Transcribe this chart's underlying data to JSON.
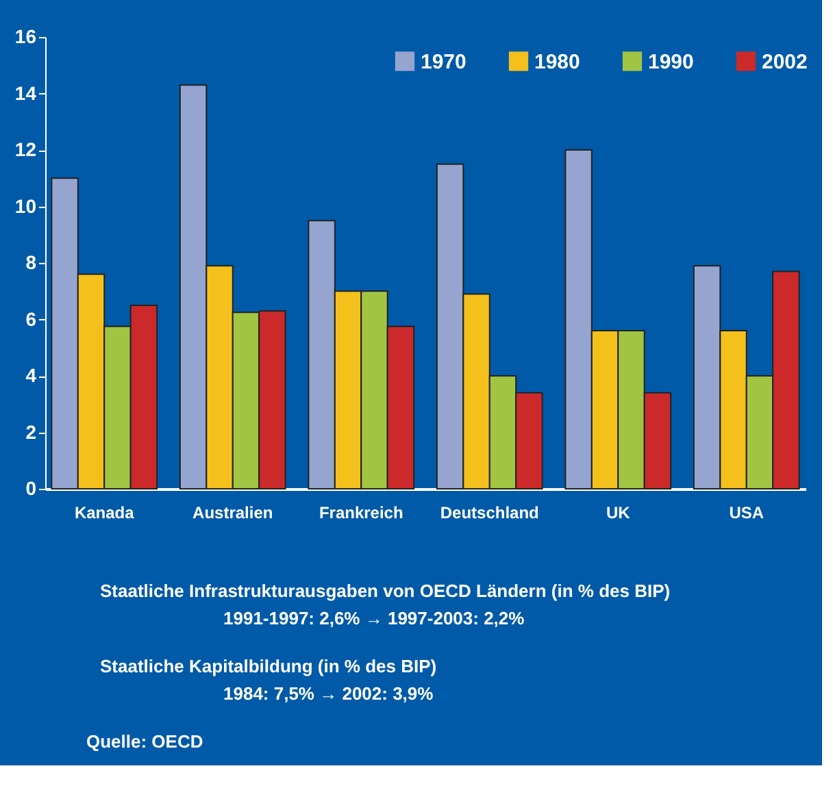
{
  "chart_data": {
    "type": "bar",
    "categories": [
      "Kanada",
      "Australien",
      "Frankreich",
      "Deutschland",
      "UK",
      "USA"
    ],
    "series": [
      {
        "name": "1970",
        "color": "#95a5d0",
        "values": [
          11.0,
          14.3,
          9.5,
          11.5,
          12.0,
          7.9
        ]
      },
      {
        "name": "1980",
        "color": "#f4c01c",
        "values": [
          7.6,
          7.9,
          7.0,
          6.9,
          5.6,
          5.6
        ]
      },
      {
        "name": "1990",
        "color": "#a2c443",
        "values": [
          5.75,
          6.25,
          7.0,
          4.0,
          5.6,
          4.0
        ]
      },
      {
        "name": "2002",
        "color": "#cc2a2a",
        "values": [
          6.5,
          6.3,
          5.75,
          3.4,
          3.4,
          7.7
        ]
      }
    ],
    "ylim": [
      0,
      16
    ],
    "yticks": [
      0,
      2,
      4,
      6,
      8,
      10,
      12,
      14,
      16
    ],
    "grid": false,
    "legend": "top right",
    "annotations": [
      "Staatliche Infrastrukturausgaben von OECD Ländern (in % des BIP)",
      "1991-1997: 2,6% → 1997-2003: 2,2%",
      "Staatliche Kapitalbildung (in % des BIP)",
      "1984: 7,5% → 2002: 3,9%",
      "Quelle: OECD"
    ]
  }
}
